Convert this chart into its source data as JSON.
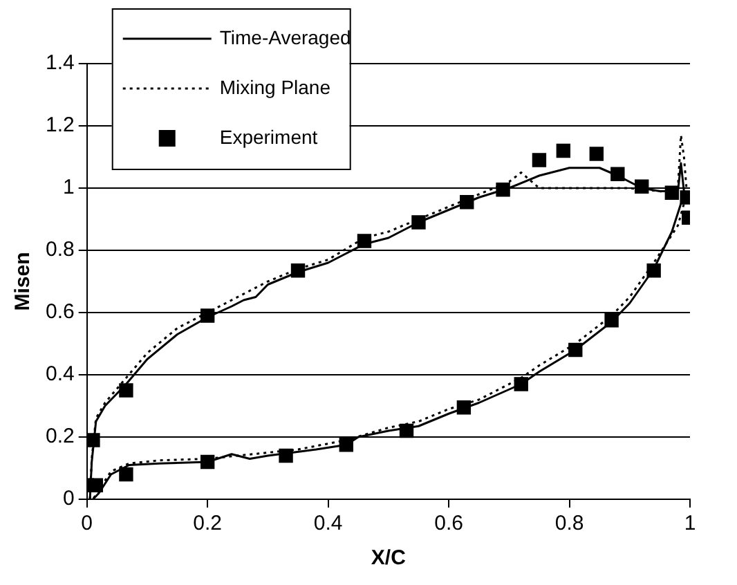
{
  "chart_data": {
    "type": "line",
    "xlabel": "X/C",
    "ylabel": "Misen",
    "xlim": [
      0,
      1
    ],
    "xticks": [
      0,
      0.2,
      0.4,
      0.6,
      0.8,
      1
    ],
    "ylim": [
      0,
      1.4
    ],
    "yticks": [
      0,
      0.2,
      0.4,
      0.6,
      0.8,
      1,
      1.2,
      1.4
    ],
    "grid": "y",
    "legend": "top left",
    "series": [
      {
        "name": "Time-Averaged",
        "type": "line",
        "color": "#000000",
        "line_style": "solid",
        "marker": "none",
        "x": [
          0.005,
          0.008,
          0.015,
          0.03,
          0.065,
          0.1,
          0.15,
          0.2,
          0.24,
          0.26,
          0.28,
          0.3,
          0.35,
          0.4,
          0.43,
          0.46,
          0.5,
          0.53,
          0.55,
          0.6,
          0.65,
          0.7,
          0.75,
          0.8,
          0.85,
          0.88,
          0.92,
          0.95,
          0.98,
          0.985,
          0.99,
          0.995,
          0.985,
          0.97,
          0.955,
          0.94,
          0.9,
          0.87,
          0.81,
          0.75,
          0.72,
          0.65,
          0.6,
          0.55,
          0.5,
          0.45,
          0.43,
          0.38,
          0.3,
          0.27,
          0.24,
          0.2,
          0.12,
          0.07,
          0.04,
          0.02,
          0.01
        ],
        "values": [
          0,
          0.12,
          0.25,
          0.3,
          0.37,
          0.45,
          0.53,
          0.585,
          0.62,
          0.64,
          0.65,
          0.69,
          0.73,
          0.76,
          0.79,
          0.82,
          0.84,
          0.87,
          0.89,
          0.93,
          0.97,
          1.0,
          1.04,
          1.065,
          1.065,
          1.04,
          1.0,
          0.99,
          0.99,
          1.08,
          0.99,
          0.97,
          0.95,
          0.86,
          0.8,
          0.74,
          0.63,
          0.57,
          0.48,
          0.41,
          0.37,
          0.31,
          0.275,
          0.235,
          0.22,
          0.2,
          0.175,
          0.16,
          0.14,
          0.13,
          0.145,
          0.12,
          0.115,
          0.11,
          0.08,
          0.02,
          0
        ]
      },
      {
        "name": "Mixing Plane",
        "type": "line",
        "color": "#000000",
        "line_style": "dotted",
        "marker": "none",
        "x": [
          0.005,
          0.008,
          0.015,
          0.03,
          0.065,
          0.1,
          0.15,
          0.2,
          0.25,
          0.3,
          0.35,
          0.4,
          0.46,
          0.5,
          0.55,
          0.6,
          0.65,
          0.7,
          0.72,
          0.75,
          0.8,
          0.85,
          0.9,
          0.95,
          0.97,
          0.98,
          0.985,
          0.99,
          0.995,
          0.99,
          0.98,
          0.96,
          0.94,
          0.9,
          0.87,
          0.81,
          0.75,
          0.72,
          0.65,
          0.6,
          0.55,
          0.5,
          0.43,
          0.35,
          0.3,
          0.2,
          0.12,
          0.07,
          0.04,
          0.02,
          0.01
        ],
        "values": [
          0,
          0.13,
          0.26,
          0.31,
          0.39,
          0.47,
          0.55,
          0.6,
          0.65,
          0.7,
          0.74,
          0.77,
          0.84,
          0.86,
          0.9,
          0.94,
          0.98,
          1.02,
          1.05,
          1.0,
          1.0,
          1.0,
          1.0,
          0.99,
          0.98,
          1.0,
          1.17,
          1.1,
          0.98,
          0.95,
          0.88,
          0.82,
          0.76,
          0.65,
          0.59,
          0.5,
          0.43,
          0.39,
          0.32,
          0.29,
          0.25,
          0.23,
          0.19,
          0.16,
          0.15,
          0.13,
          0.125,
          0.115,
          0.09,
          0.03,
          0
        ]
      },
      {
        "name": "Experiment",
        "type": "scatter",
        "color": "#000000",
        "marker": "square",
        "x": [
          0.01,
          0.065,
          0.2,
          0.35,
          0.46,
          0.55,
          0.63,
          0.69,
          0.75,
          0.79,
          0.845,
          0.88,
          0.92,
          0.97,
          0.995,
          0.998,
          0,
          0.015,
          0.065,
          0.2,
          0.33,
          0.43,
          0.53,
          0.625,
          0.72,
          0.81,
          0.87,
          0.94
        ],
        "values": [
          0.19,
          0.35,
          0.59,
          0.735,
          0.83,
          0.89,
          0.955,
          0.995,
          1.09,
          1.12,
          1.11,
          1.045,
          1.005,
          0.985,
          0.97,
          0.905,
          0.045,
          0.045,
          0.08,
          0.12,
          0.14,
          0.175,
          0.22,
          0.295,
          0.37,
          0.48,
          0.575,
          0.735
        ]
      }
    ]
  }
}
